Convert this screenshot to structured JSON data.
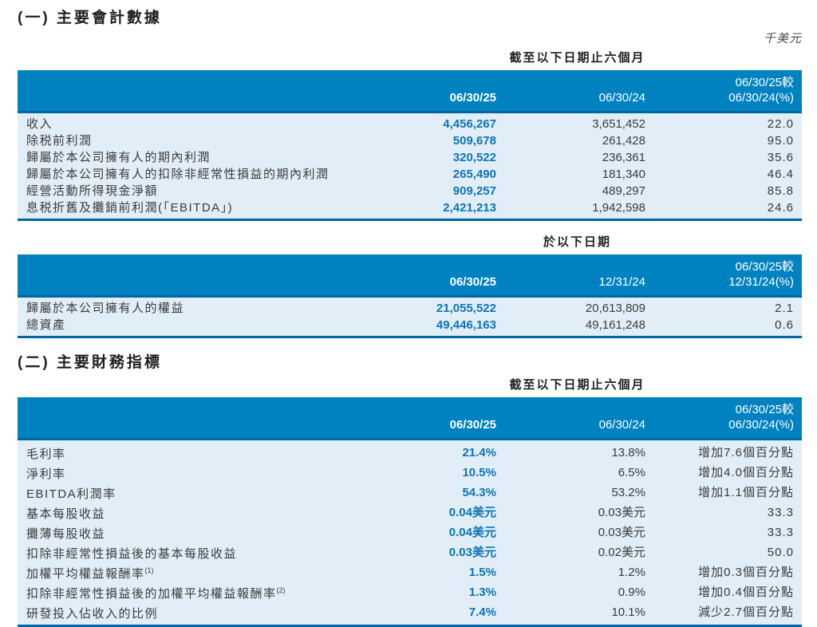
{
  "page": {
    "unit": "千美元"
  },
  "section1": {
    "title": "(一) 主要會計數據",
    "period_table": {
      "group_header": "截至以下日期止六個月",
      "col_label": "",
      "col_current": "06/30/25",
      "col_prior": "06/30/24",
      "col_change_line1": "06/30/25較",
      "col_change_line2": "06/30/24(%)",
      "rows": [
        {
          "label": "收入",
          "v1": "4,456,267",
          "v2": "3,651,452",
          "chg": "22.0"
        },
        {
          "label": "除税前利潤",
          "v1": "509,678",
          "v2": "261,428",
          "chg": "95.0"
        },
        {
          "label": "歸屬於本公司擁有人的期內利潤",
          "v1": "320,522",
          "v2": "236,361",
          "chg": "35.6"
        },
        {
          "label": "歸屬於本公司擁有人的扣除非經常性損益的期內利潤",
          "v1": "265,490",
          "v2": "181,340",
          "chg": "46.4"
        },
        {
          "label": "經營活動所得現金淨額",
          "v1": "909,257",
          "v2": "489,297",
          "chg": "85.8"
        },
        {
          "label": "息税折舊及攤銷前利潤(「EBITDA」)",
          "v1": "2,421,213",
          "v2": "1,942,598",
          "chg": "24.6"
        }
      ]
    },
    "balance_table": {
      "group_header": "於以下日期",
      "col_current": "06/30/25",
      "col_prior": "12/31/24",
      "col_change_line1": "06/30/25較",
      "col_change_line2": "12/31/24(%)",
      "rows": [
        {
          "label": "歸屬於本公司擁有人的權益",
          "v1": "21,055,522",
          "v2": "20,613,809",
          "chg": "2.1"
        },
        {
          "label": "總資產",
          "v1": "49,446,163",
          "v2": "49,161,248",
          "chg": "0.6"
        }
      ]
    }
  },
  "section2": {
    "title": "(二) 主要財務指標",
    "indicator_table": {
      "group_header": "截至以下日期止六個月",
      "col_current": "06/30/25",
      "col_prior": "06/30/24",
      "col_change_line1": "06/30/25較",
      "col_change_line2": "06/30/24(%)",
      "rows": [
        {
          "label": "毛利率",
          "sup": "",
          "v1": "21.4%",
          "v2": "13.8%",
          "chg": "增加7.6個百分點"
        },
        {
          "label": "淨利率",
          "sup": "",
          "v1": "10.5%",
          "v2": "6.5%",
          "chg": "增加4.0個百分點"
        },
        {
          "label": "EBITDA利潤率",
          "sup": "",
          "v1": "54.3%",
          "v2": "53.2%",
          "chg": "增加1.1個百分點"
        },
        {
          "label": "基本每股收益",
          "sup": "",
          "v1": "0.04美元",
          "v2": "0.03美元",
          "chg": "33.3"
        },
        {
          "label": "攤薄每股收益",
          "sup": "",
          "v1": "0.04美元",
          "v2": "0.03美元",
          "chg": "33.3"
        },
        {
          "label": "扣除非經常性損益後的基本每股收益",
          "sup": "",
          "v1": "0.03美元",
          "v2": "0.02美元",
          "chg": "50.0"
        },
        {
          "label": "加權平均權益報酬率",
          "sup": "(1)",
          "v1": "1.5%",
          "v2": "1.2%",
          "chg": "增加0.3個百分點"
        },
        {
          "label": "扣除非經常性損益後的加權平均權益報酬率",
          "sup": "(2)",
          "v1": "1.3%",
          "v2": "0.9%",
          "chg": "增加0.4個百分點"
        },
        {
          "label": "研發投入佔收入的比例",
          "sup": "",
          "v1": "7.4%",
          "v2": "10.1%",
          "chg": "減少2.7個百分點"
        }
      ]
    }
  }
}
